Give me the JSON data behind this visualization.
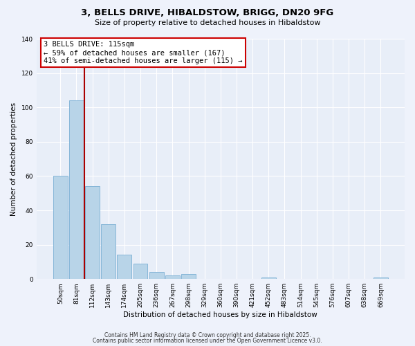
{
  "title": "3, BELLS DRIVE, HIBALDSTOW, BRIGG, DN20 9FG",
  "subtitle": "Size of property relative to detached houses in Hibaldstow",
  "xlabel": "Distribution of detached houses by size in Hibaldstow",
  "ylabel": "Number of detached properties",
  "categories": [
    "50sqm",
    "81sqm",
    "112sqm",
    "143sqm",
    "174sqm",
    "205sqm",
    "236sqm",
    "267sqm",
    "298sqm",
    "329sqm",
    "360sqm",
    "390sqm",
    "421sqm",
    "452sqm",
    "483sqm",
    "514sqm",
    "545sqm",
    "576sqm",
    "607sqm",
    "638sqm",
    "669sqm"
  ],
  "values": [
    60,
    104,
    54,
    32,
    14,
    9,
    4,
    2,
    3,
    0,
    0,
    0,
    0,
    1,
    0,
    0,
    0,
    0,
    0,
    0,
    1
  ],
  "bar_color": "#b8d4e8",
  "bar_edge_color": "#7bafd4",
  "vline_x_index": 1.5,
  "vline_color": "#aa0000",
  "annotation_title": "3 BELLS DRIVE: 115sqm",
  "annotation_line1": "← 59% of detached houses are smaller (167)",
  "annotation_line2": "41% of semi-detached houses are larger (115) →",
  "annotation_box_facecolor": "white",
  "annotation_box_edgecolor": "#cc0000",
  "ylim": [
    0,
    140
  ],
  "yticks": [
    0,
    20,
    40,
    60,
    80,
    100,
    120,
    140
  ],
  "footer1": "Contains HM Land Registry data © Crown copyright and database right 2025.",
  "footer2": "Contains public sector information licensed under the Open Government Licence v3.0.",
  "bg_color": "#eef2fb",
  "plot_bg_color": "#e8eef8",
  "title_fontsize": 9.5,
  "subtitle_fontsize": 8,
  "ylabel_fontsize": 7.5,
  "xlabel_fontsize": 7.5,
  "tick_fontsize": 6.5,
  "footer_fontsize": 5.5,
  "annot_fontsize": 7.5
}
